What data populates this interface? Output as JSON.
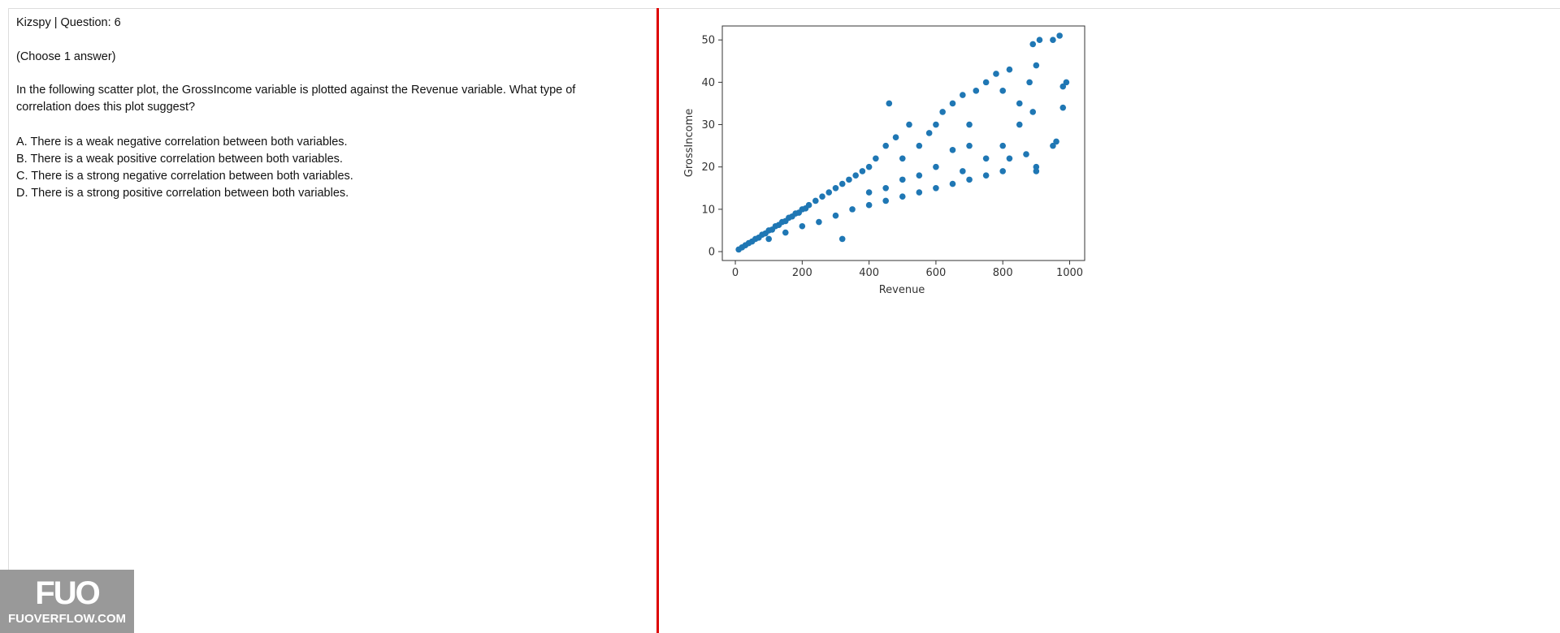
{
  "header": {
    "title": "Kizspy | Question: 6"
  },
  "instruction": "(Choose 1 answer)",
  "question": "In the following scatter plot, the GrossIncome variable is plotted against the Revenue variable. What type of correlation does this plot suggest?",
  "options": [
    "A. There is a weak negative correlation between both variables.",
    "B. There is a weak positive correlation between both variables.",
    "C. There is a strong negative correlation between both variables.",
    "D. There is a strong positive correlation between both variables."
  ],
  "watermark": {
    "logo": "FUO",
    "site": "FUOVERFLOW.COM"
  },
  "chart_data": {
    "type": "scatter",
    "x_label": "Revenue",
    "y_label": "GrossIncome",
    "color": "#1f77b4",
    "xlim": [
      -39,
      1045
    ],
    "ylim": [
      -2.1,
      53.3
    ],
    "xticks": [
      0,
      200,
      400,
      600,
      800,
      1000
    ],
    "yticks": [
      0,
      10,
      20,
      30,
      40,
      50
    ],
    "x": [
      10,
      20,
      30,
      40,
      50,
      60,
      70,
      80,
      90,
      100,
      110,
      120,
      130,
      140,
      150,
      160,
      170,
      180,
      190,
      200,
      210,
      220,
      240,
      260,
      280,
      300,
      320,
      340,
      360,
      380,
      400,
      100,
      150,
      200,
      250,
      300,
      350,
      400,
      450,
      500,
      550,
      600,
      650,
      700,
      750,
      800,
      900,
      950,
      980,
      420,
      450,
      480,
      500,
      520,
      550,
      580,
      600,
      620,
      650,
      680,
      700,
      720,
      750,
      780,
      800,
      820,
      850,
      880,
      900,
      950,
      970,
      890,
      910,
      960,
      990,
      460,
      320,
      700,
      750,
      800,
      850,
      600,
      650,
      550,
      500,
      450,
      400,
      890,
      980,
      870,
      900,
      820,
      680
    ],
    "y": [
      0.5,
      1,
      1.5,
      2,
      2.4,
      3,
      3.3,
      4,
      4.3,
      5,
      5.2,
      6,
      6.3,
      7,
      7.2,
      8,
      8.3,
      9,
      9.2,
      10,
      10.2,
      11,
      12,
      13,
      14,
      15,
      16,
      17,
      18,
      19,
      20,
      3,
      4.5,
      6,
      7,
      8.5,
      10,
      11,
      12,
      13,
      14,
      15,
      16,
      17,
      18,
      19,
      20,
      25,
      34,
      22,
      25,
      27,
      22,
      30,
      25,
      28,
      30,
      33,
      35,
      37,
      30,
      38,
      40,
      42,
      38,
      43,
      35,
      40,
      44,
      50,
      51,
      49,
      50,
      26,
      40,
      35,
      3,
      25,
      22,
      25,
      30,
      20,
      24,
      18,
      17,
      15,
      14,
      33,
      39,
      23,
      19,
      22,
      19
    ]
  }
}
